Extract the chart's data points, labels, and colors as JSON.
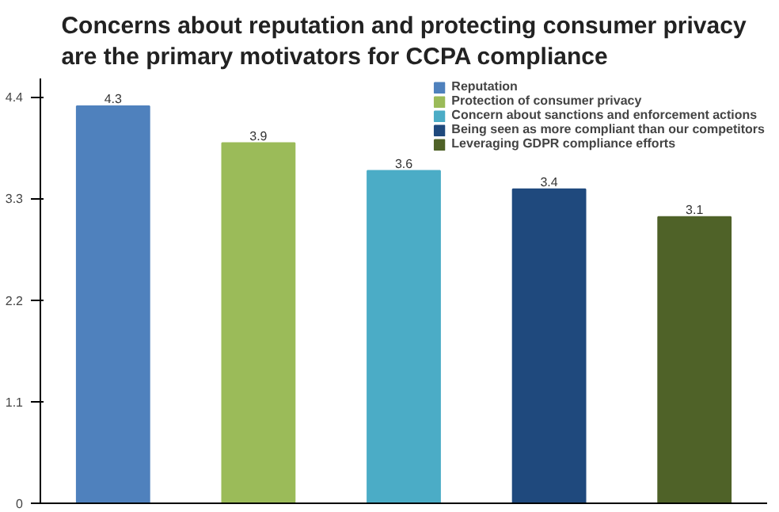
{
  "chart_data": {
    "type": "bar",
    "title": "Concerns about reputation and protecting consumer privacy are the primary motivators for CCPA compliance",
    "categories": [
      null,
      null,
      null,
      null,
      null
    ],
    "series": [
      {
        "name": "Reputation",
        "color": "#4f81bd",
        "values": [
          4.3,
          null,
          null,
          null,
          null
        ]
      },
      {
        "name": "Protection of consumer privacy",
        "color": "#9bbb59",
        "values": [
          null,
          3.9,
          null,
          null,
          null
        ]
      },
      {
        "name": "Concern about sanctions and enforcement actions",
        "color": "#4bacc6",
        "values": [
          null,
          null,
          3.6,
          null,
          null
        ]
      },
      {
        "name": "Being seen as more compliant than our competitors",
        "color": "#1f497d",
        "values": [
          null,
          null,
          null,
          3.4,
          null
        ]
      },
      {
        "name": "Leveraging GDPR compliance efforts",
        "color": "#4f6228",
        "values": [
          null,
          null,
          null,
          null,
          3.1
        ]
      }
    ],
    "ylim": [
      0,
      4.6
    ],
    "yticks": [
      0,
      1.1,
      2.2,
      3.3,
      4.4
    ],
    "data_labels": true,
    "grid": false,
    "legend": "top right"
  }
}
